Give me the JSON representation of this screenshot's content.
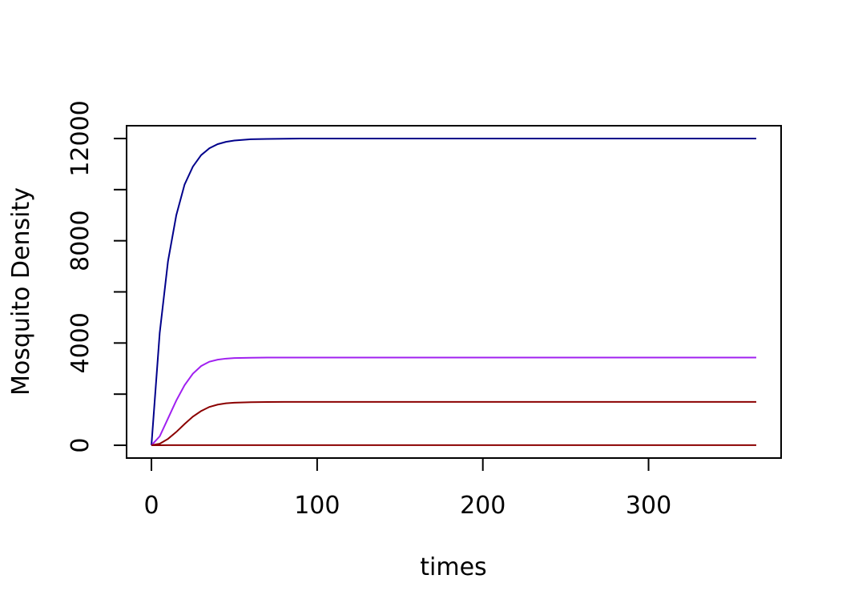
{
  "chart_data": {
    "type": "line",
    "title": "",
    "xlabel": "times",
    "ylabel": "Mosquito Density",
    "xlim": [
      -15,
      380
    ],
    "ylim": [
      -500,
      12500
    ],
    "xticks": [
      0,
      100,
      200,
      300
    ],
    "xtick_labels": [
      "0",
      "100",
      "200",
      "300"
    ],
    "yticks": [
      0,
      2000,
      4000,
      6000,
      8000,
      10000,
      12000
    ],
    "ytick_labels": [
      "0",
      "",
      "4000",
      "",
      "8000",
      "",
      "12000"
    ],
    "grid": false,
    "legend": "none",
    "x": [
      0,
      5,
      10,
      15,
      20,
      25,
      30,
      35,
      40,
      45,
      50,
      60,
      70,
      80,
      90,
      100,
      120,
      150,
      200,
      250,
      300,
      365
    ],
    "series": [
      {
        "color": "#00008b",
        "values": [
          0,
          4400,
          7200,
          9000,
          10200,
          10900,
          11350,
          11620,
          11780,
          11870,
          11920,
          11970,
          11985,
          11993,
          11997,
          12000,
          12000,
          12000,
          12000,
          12000,
          12000,
          12000
        ]
      },
      {
        "color": "#a020f0",
        "values": [
          0,
          350,
          1050,
          1750,
          2350,
          2800,
          3100,
          3270,
          3350,
          3390,
          3410,
          3425,
          3430,
          3432,
          3433,
          3433,
          3433,
          3433,
          3433,
          3433,
          3433,
          3433
        ]
      },
      {
        "color": "#8b0000",
        "values": [
          0,
          60,
          250,
          520,
          830,
          1120,
          1340,
          1500,
          1590,
          1640,
          1665,
          1685,
          1692,
          1695,
          1696,
          1697,
          1697,
          1697,
          1697,
          1697,
          1697,
          1697
        ]
      },
      {
        "color": "#8b0000",
        "values": [
          0,
          2,
          4,
          5,
          5,
          5,
          5,
          5,
          5,
          5,
          5,
          5,
          5,
          5,
          5,
          5,
          5,
          5,
          5,
          5,
          5,
          5
        ]
      }
    ]
  }
}
